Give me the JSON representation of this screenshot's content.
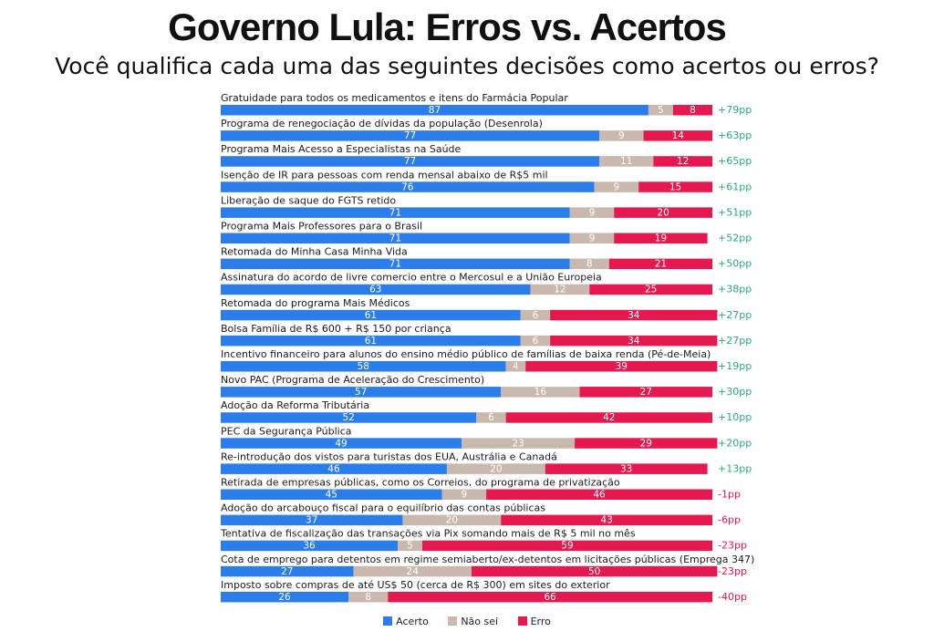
{
  "title": "Governo Lula: Erros vs. Acertos",
  "subtitle": "Você qualifica cada uma das seguintes decisões como acertos ou erros?",
  "colors": {
    "acerto": "#2b7de9",
    "nao_sei": "#c8b8ae",
    "erro": "#e5184f",
    "diff_positive": "#2aa87e",
    "diff_negative": "#e5184f"
  },
  "chart_data": {
    "type": "bar",
    "orientation": "horizontal",
    "stacked": true,
    "categories": [
      "Gratuidade para todos os medicamentos e itens do Farmácia Popular",
      "Programa de renegociação de dívidas da população (Desenrola)",
      "Programa Mais Acesso a Especialistas na Saúde",
      "Isenção de IR para pessoas com renda mensal abaixo de R$5 mil",
      "Liberação de saque do FGTS retido",
      "Programa Mais Professores para o Brasil",
      "Retomada do Minha Casa Minha Vida",
      "Assinatura do acordo de livre comercio entre o Mercosul e a União Europeia",
      "Retomada do programa Mais Médicos",
      "Bolsa Família de R$ 600 + R$ 150 por criança",
      "Incentivo financeiro para alunos do ensino médio público de famílias de baixa renda (Pé-de-Meia)",
      "Novo PAC (Programa de Aceleração do Crescimento)",
      "Adoção da Reforma Tributária",
      "PEC da Segurança Pública",
      "Re-introdução dos vistos para turistas dos EUA, Austrália e Canadá",
      "Retirada de empresas públicas, como os Correios, do programa de privatização",
      "Adoção do arcabouço fiscal para o equilíbrio das contas públicas",
      "Tentativa de fiscalização das transações via Pix somando mais de R$ 5 mil no mês",
      "Cota de emprego para detentos em regime semiaberto/ex-detentos em licitações públicas (Emprega 347)",
      "Imposto sobre compras de até US$ 50 (cerca de R$ 300) em sites do exterior"
    ],
    "series": [
      {
        "name": "Acerto",
        "values": [
          87,
          77,
          77,
          76,
          71,
          71,
          71,
          63,
          61,
          61,
          58,
          57,
          52,
          49,
          46,
          45,
          37,
          36,
          27,
          26
        ]
      },
      {
        "name": "Não sei",
        "values": [
          5,
          9,
          11,
          9,
          9,
          9,
          8,
          12,
          6,
          6,
          4,
          16,
          6,
          23,
          20,
          9,
          20,
          5,
          24,
          8
        ]
      },
      {
        "name": "Erro",
        "values": [
          8,
          14,
          12,
          15,
          20,
          19,
          21,
          25,
          34,
          34,
          39,
          27,
          42,
          29,
          33,
          46,
          43,
          59,
          50,
          66
        ]
      }
    ],
    "net": [
      "+79pp",
      "+63pp",
      "+65pp",
      "+61pp",
      "+51pp",
      "+52pp",
      "+50pp",
      "+38pp",
      "+27pp",
      "+27pp",
      "+19pp",
      "+30pp",
      "+10pp",
      "+20pp",
      "+13pp",
      "-1pp",
      "-6pp",
      "-23pp",
      "-23pp",
      "-40pp"
    ],
    "legend": [
      "Acerto",
      "Não sei",
      "Erro"
    ],
    "legend_position": "bottom",
    "xlim": [
      0,
      100
    ],
    "grid": false
  }
}
